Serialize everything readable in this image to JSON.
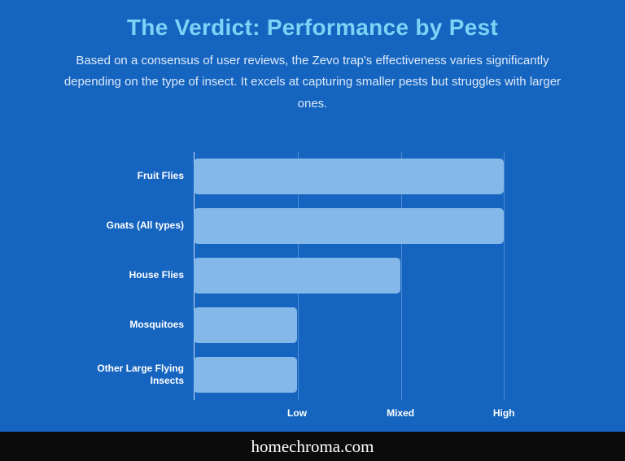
{
  "page": {
    "title": "The Verdict: Performance by Pest",
    "subtitle": "Based on a consensus of user reviews, the Zevo trap's effectiveness varies significantly depending on the type of insect. It excels at capturing smaller pests but struggles with larger ones.",
    "footer": "homechroma.com"
  },
  "colors": {
    "background": "#1565c0",
    "title": "#7ed2f6",
    "subtitle_text": "#dde9f8",
    "bar_fill": "#84b8e9",
    "axis_line": "#e6f0fc",
    "gridline": "#bed7f5",
    "footer_background": "#0b0b0b",
    "footer_text": "#ffffff"
  },
  "chart_data": {
    "type": "bar",
    "orientation": "horizontal",
    "title": "The Verdict: Performance by Pest",
    "categories": [
      "Fruit Flies",
      "Gnats (All types)",
      "House Flies",
      "Mosquitoes",
      "Other Large Flying Insects"
    ],
    "values": [
      3,
      3,
      2,
      1,
      1
    ],
    "value_scale_note": "1 = Low, 2 = Mixed, 3 = High effectiveness",
    "xticks": [
      {
        "value": 1,
        "label": "Low"
      },
      {
        "value": 2,
        "label": "Mixed"
      },
      {
        "value": 3,
        "label": "High"
      }
    ],
    "xlim": [
      0,
      3.4
    ],
    "xlabel": "",
    "ylabel": "",
    "grid": true,
    "legend": false
  }
}
